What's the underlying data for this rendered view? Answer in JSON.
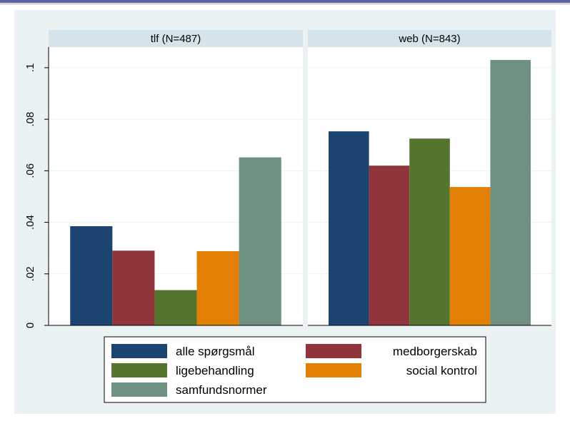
{
  "chart_data": {
    "type": "bar",
    "colors": {
      "background": "#eaf2f3",
      "panel_header": "#d5e4ea",
      "plot_area": "#ffffff",
      "grid": "#eaf2f3"
    },
    "ylim": [
      0,
      0.108
    ],
    "yticks": [
      {
        "value": 0,
        "label": "0"
      },
      {
        "value": 0.02,
        "label": ".02"
      },
      {
        "value": 0.04,
        "label": ".04"
      },
      {
        "value": 0.06,
        "label": ".06"
      },
      {
        "value": 0.08,
        "label": ".08"
      },
      {
        "value": 0.1,
        "label": ".1"
      }
    ],
    "grid": true,
    "legend_position": "bottom",
    "series": [
      {
        "name": "alle spørgsmål",
        "color": "#1b4470"
      },
      {
        "name": "medborgerskab",
        "color": "#90353b"
      },
      {
        "name": "ligebehandling",
        "color": "#55752f"
      },
      {
        "name": "social kontrol",
        "color": "#e27f05"
      },
      {
        "name": "samfundsnormer",
        "color": "#6e9181"
      }
    ],
    "panels": [
      {
        "title": "tlf (N=487)",
        "values": [
          0.0385,
          0.029,
          0.0137,
          0.0288,
          0.0652
        ]
      },
      {
        "title": "web (N=843)",
        "values": [
          0.0753,
          0.062,
          0.0725,
          0.0537,
          0.103
        ]
      }
    ]
  }
}
